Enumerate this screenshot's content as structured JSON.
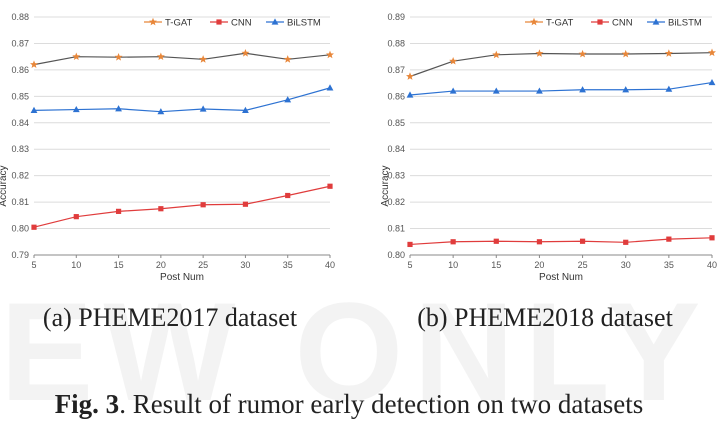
{
  "figure": {
    "caption_label": "Fig. 3",
    "caption_text": ". Result of rumor early detection on two datasets",
    "watermark": "EW ONLY"
  },
  "colors": {
    "T-GAT": "#E8873A",
    "CNN": "#E03C3C",
    "BiLSTM": "#2D72D2",
    "grid": "#DCDCDC",
    "axis": "#888888"
  },
  "chart_data": [
    {
      "type": "line",
      "subcaption": "(a) PHEME2017 dataset",
      "xlabel": "Post Num",
      "ylabel": "Accuracy",
      "x": [
        5,
        10,
        15,
        20,
        25,
        30,
        35,
        40
      ],
      "ylim": [
        0.79,
        0.88
      ],
      "yticks": [
        "0.79",
        "0.80",
        "0.81",
        "0.82",
        "0.83",
        "0.84",
        "0.85",
        "0.86",
        "0.87",
        "0.88"
      ],
      "xticks": [
        "5",
        "10",
        "15",
        "20",
        "25",
        "30",
        "35",
        "40"
      ],
      "legend": "top-right",
      "grid": true,
      "series": [
        {
          "name": "T-GAT",
          "marker": "star",
          "values": [
            0.862,
            0.865,
            0.8648,
            0.865,
            0.864,
            0.8663,
            0.864,
            0.8657
          ]
        },
        {
          "name": "CNN",
          "marker": "square",
          "values": [
            0.8005,
            0.8045,
            0.8065,
            0.8075,
            0.809,
            0.8092,
            0.8125,
            0.816
          ]
        },
        {
          "name": "BiLSTM",
          "marker": "triangle",
          "values": [
            0.8447,
            0.845,
            0.8453,
            0.8442,
            0.8452,
            0.8447,
            0.8487,
            0.8532
          ]
        }
      ]
    },
    {
      "type": "line",
      "subcaption": "(b) PHEME2018 dataset",
      "xlabel": "Post Num",
      "ylabel": "Accuracy",
      "x": [
        5,
        10,
        15,
        20,
        25,
        30,
        35,
        40
      ],
      "ylim": [
        0.8,
        0.89
      ],
      "yticks": [
        "0.80",
        "0.81",
        "0.82",
        "0.83",
        "0.84",
        "0.85",
        "0.86",
        "0.87",
        "0.88",
        "0.89"
      ],
      "xticks": [
        "5",
        "10",
        "15",
        "20",
        "25",
        "30",
        "35",
        "40"
      ],
      "legend": "top-right",
      "grid": true,
      "series": [
        {
          "name": "T-GAT",
          "marker": "star",
          "values": [
            0.8675,
            0.8733,
            0.8757,
            0.8762,
            0.876,
            0.876,
            0.8762,
            0.8765
          ]
        },
        {
          "name": "CNN",
          "marker": "square",
          "values": [
            0.804,
            0.805,
            0.8052,
            0.805,
            0.8052,
            0.8048,
            0.806,
            0.8065
          ]
        },
        {
          "name": "BiLSTM",
          "marker": "triangle",
          "values": [
            0.8605,
            0.862,
            0.862,
            0.862,
            0.8625,
            0.8625,
            0.8627,
            0.8652
          ]
        }
      ]
    }
  ]
}
